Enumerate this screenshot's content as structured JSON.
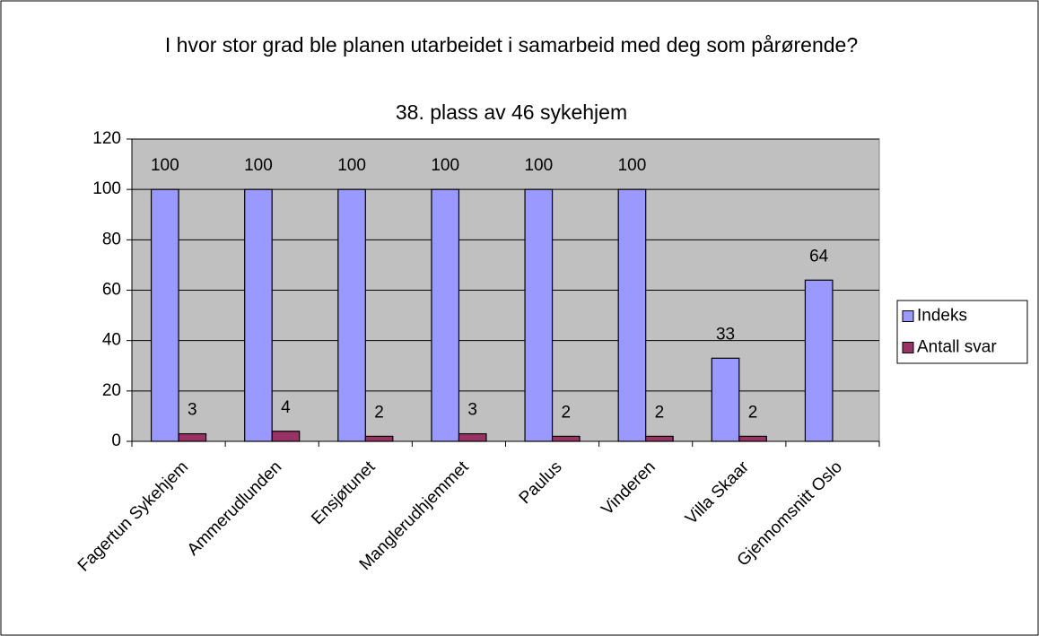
{
  "chart_data": {
    "type": "bar",
    "title": "I hvor stor grad ble planen utarbeidet i samarbeid med deg som pårørende?",
    "subtitle": "38. plass av 46 sykehjem",
    "categories": [
      "Fagertun Sykehjem",
      "Ammerudlunden",
      "Ensjøtunet",
      "Manglerudhjemmet",
      "Paulus",
      "Vinderen",
      "Villa Skaar",
      "Gjennomsnitt Oslo"
    ],
    "series": [
      {
        "name": "Indeks",
        "color": "#9999ff",
        "values": [
          100,
          100,
          100,
          100,
          100,
          100,
          33,
          64
        ]
      },
      {
        "name": "Antall svar",
        "color": "#993366",
        "values": [
          3,
          4,
          2,
          3,
          2,
          2,
          2,
          null
        ]
      }
    ],
    "ylim": [
      0,
      120
    ],
    "yticks": [
      0,
      20,
      40,
      60,
      80,
      100,
      120
    ],
    "grid": true,
    "legend": "right"
  }
}
